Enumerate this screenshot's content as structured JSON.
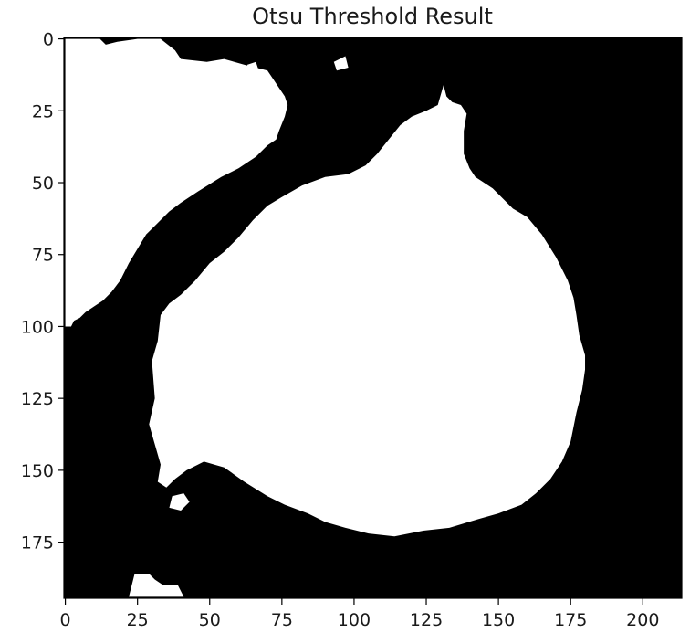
{
  "chart_data": {
    "type": "heatmap",
    "title": "Otsu Threshold Result",
    "xlabel": "",
    "ylabel": "",
    "xlim": [
      -0.5,
      213.5
    ],
    "ylim": [
      194.5,
      -0.5
    ],
    "colormap": {
      "0": "#000000",
      "1": "#ffffff"
    },
    "x_ticks": [
      0,
      25,
      50,
      75,
      100,
      125,
      150,
      175,
      200
    ],
    "y_ticks": [
      0,
      25,
      50,
      75,
      100,
      125,
      150,
      175
    ],
    "x_tick_labels": [
      "0",
      "25",
      "50",
      "75",
      "100",
      "125",
      "150",
      "175",
      "200"
    ],
    "y_tick_labels": [
      "0",
      "25",
      "50",
      "75",
      "100",
      "125",
      "150",
      "175"
    ],
    "grid": false,
    "legend": "none",
    "regions": [
      {
        "value": 1,
        "outline": [
          [
            0,
            0
          ],
          [
            12,
            0
          ],
          [
            14,
            2
          ],
          [
            18,
            1
          ],
          [
            25,
            0
          ],
          [
            33,
            0
          ],
          [
            38,
            4
          ],
          [
            40,
            7
          ],
          [
            49,
            8
          ],
          [
            55,
            7
          ],
          [
            62,
            9
          ],
          [
            66,
            10
          ],
          [
            70,
            11
          ],
          [
            72,
            14
          ],
          [
            74,
            17
          ],
          [
            76,
            20
          ],
          [
            77,
            23
          ],
          [
            76,
            27
          ],
          [
            74,
            32
          ],
          [
            73,
            35
          ],
          [
            70,
            37
          ],
          [
            66,
            41
          ],
          [
            60,
            45
          ],
          [
            54,
            48
          ],
          [
            46,
            53
          ],
          [
            40,
            57
          ],
          [
            36,
            60
          ],
          [
            32,
            64
          ],
          [
            28,
            68
          ],
          [
            25,
            73
          ],
          [
            22,
            78
          ],
          [
            19,
            84
          ],
          [
            16,
            88
          ],
          [
            13,
            91
          ],
          [
            10,
            93
          ],
          [
            7,
            95
          ],
          [
            5,
            97
          ],
          [
            3,
            98
          ],
          [
            2,
            100
          ],
          [
            0,
            100
          ]
        ]
      },
      {
        "value": 1,
        "outline": [
          [
            131,
            16
          ],
          [
            132,
            20
          ],
          [
            134,
            22
          ],
          [
            137,
            23
          ],
          [
            139,
            26
          ],
          [
            138,
            32
          ],
          [
            138,
            40
          ],
          [
            140,
            45
          ],
          [
            142,
            48
          ],
          [
            148,
            52
          ],
          [
            152,
            56
          ],
          [
            155,
            59
          ],
          [
            160,
            62
          ],
          [
            165,
            68
          ],
          [
            170,
            76
          ],
          [
            174,
            84
          ],
          [
            176,
            90
          ],
          [
            177,
            96
          ],
          [
            178,
            103
          ],
          [
            180,
            110
          ],
          [
            180,
            115
          ],
          [
            179,
            122
          ],
          [
            177,
            130
          ],
          [
            175,
            140
          ],
          [
            172,
            147
          ],
          [
            168,
            153
          ],
          [
            163,
            158
          ],
          [
            158,
            162
          ],
          [
            150,
            165
          ],
          [
            143,
            167
          ],
          [
            133,
            170
          ],
          [
            124,
            171
          ],
          [
            114,
            173
          ],
          [
            105,
            172
          ],
          [
            97,
            170
          ],
          [
            90,
            168
          ],
          [
            84,
            165
          ],
          [
            76,
            162
          ],
          [
            70,
            159
          ],
          [
            62,
            154
          ],
          [
            55,
            149
          ],
          [
            48,
            147
          ],
          [
            42,
            150
          ],
          [
            38,
            153
          ],
          [
            35,
            156
          ],
          [
            32,
            154
          ],
          [
            33,
            148
          ],
          [
            31,
            141
          ],
          [
            29,
            134
          ],
          [
            31,
            125
          ],
          [
            30,
            112
          ],
          [
            32,
            105
          ],
          [
            33,
            96
          ],
          [
            36,
            92
          ],
          [
            40,
            89
          ],
          [
            45,
            84
          ],
          [
            50,
            78
          ],
          [
            55,
            74
          ],
          [
            60,
            69
          ],
          [
            65,
            63
          ],
          [
            70,
            58
          ],
          [
            75,
            55
          ],
          [
            82,
            51
          ],
          [
            90,
            48
          ],
          [
            98,
            47
          ],
          [
            104,
            44
          ],
          [
            108,
            40
          ],
          [
            112,
            35
          ],
          [
            116,
            30
          ],
          [
            120,
            27
          ],
          [
            125,
            25
          ],
          [
            129,
            23
          ]
        ]
      },
      {
        "value": 1,
        "outline": [
          [
            93,
            8
          ],
          [
            97,
            6
          ],
          [
            98,
            10
          ],
          [
            94,
            11
          ]
        ]
      },
      {
        "value": 1,
        "outline": [
          [
            63,
            9
          ],
          [
            66,
            8
          ],
          [
            67,
            11
          ],
          [
            64,
            12
          ]
        ]
      },
      {
        "value": 1,
        "outline": [
          [
            24,
            186
          ],
          [
            29,
            186
          ],
          [
            31,
            188
          ],
          [
            34,
            190
          ],
          [
            39,
            190
          ],
          [
            41,
            194
          ],
          [
            22,
            194
          ]
        ]
      },
      {
        "value": 1,
        "outline": [
          [
            37,
            159
          ],
          [
            41,
            158
          ],
          [
            43,
            161
          ],
          [
            40,
            164
          ],
          [
            36,
            163
          ]
        ]
      }
    ]
  }
}
